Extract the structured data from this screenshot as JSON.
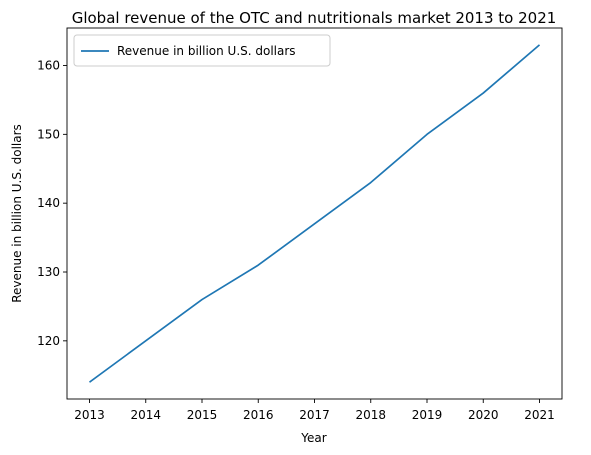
{
  "chart_data": {
    "type": "line",
    "title": "Global revenue of the OTC and nutritionals market 2013 to 2021",
    "xlabel": "Year",
    "ylabel": "Revenue in billion U.S. dollars",
    "x": [
      2013,
      2014,
      2015,
      2016,
      2017,
      2018,
      2019,
      2020,
      2021
    ],
    "series": [
      {
        "name": "Revenue in billion U.S. dollars",
        "values": [
          114,
          120,
          126,
          131,
          137,
          143,
          150,
          156,
          163
        ],
        "color": "#1f77b4"
      }
    ],
    "xlim": [
      2012.6,
      2021.4
    ],
    "ylim": [
      111.55,
      165.45
    ],
    "xticks": [
      "2013",
      "2014",
      "2015",
      "2016",
      "2017",
      "2018",
      "2019",
      "2020",
      "2021"
    ],
    "yticks": [
      120,
      130,
      140,
      150,
      160
    ],
    "legend_position": "top-left",
    "grid": false
  }
}
